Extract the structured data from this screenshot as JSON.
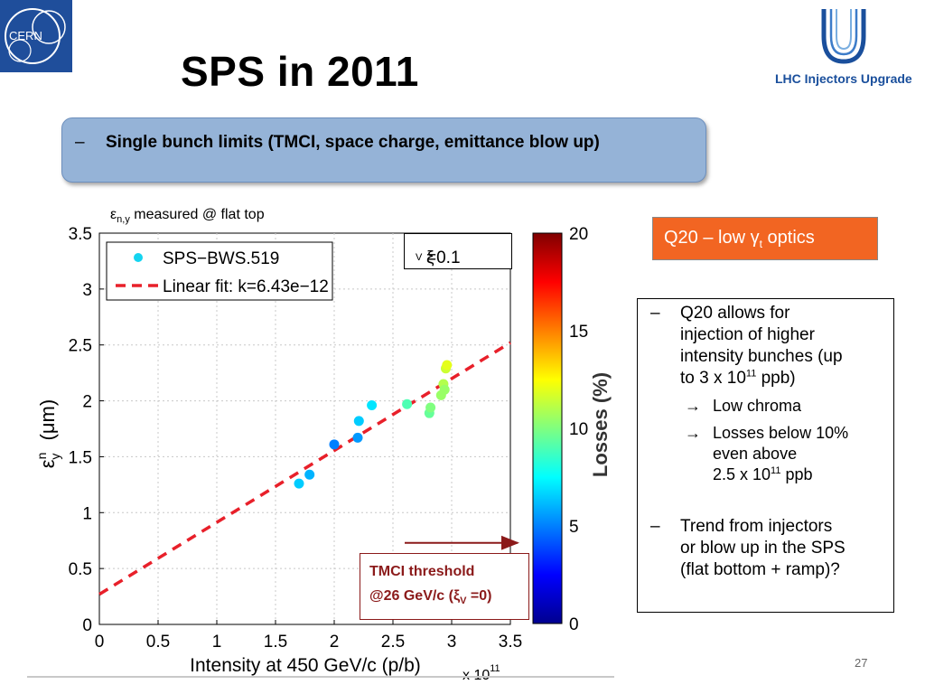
{
  "slide": {
    "title": "SPS in 2011",
    "logo_left_text": "CERN",
    "logo_right_text": "LHC Injectors Upgrade",
    "page_number": "27",
    "bullet_top": {
      "dash": "–",
      "text": "Single bunch limits (TMCI, space charge, emittance blow up)"
    },
    "emittance_label": {
      "symbol": "ε",
      "subscript": "n,y",
      "text": " measured @ flat top"
    },
    "q20_box": {
      "prefix": "Q20 – low ",
      "symbol": "γ",
      "subscript": "t",
      "suffix": " optics"
    },
    "xi_box": {
      "symbol": "ξ",
      "subscript": "V",
      "value": "=0.1"
    },
    "tmci_box": {
      "line1": "TMCI threshold",
      "line2_prefix": "@26 GeV/c (",
      "line2_symbol": "ξ",
      "line2_sub": "V",
      "line2_suffix": " =0)"
    },
    "right_box": {
      "bullet1": {
        "dash": "–",
        "lines": [
          "Q20 allows for",
          "injection of higher",
          "intensity bunches (up"
        ],
        "line4_prefix": "to 3 x 10",
        "line4_sup": "11",
        "line4_suffix": " ppb)"
      },
      "sub1": {
        "arrow": "→",
        "text": "Low chroma"
      },
      "sub2": {
        "arrow": "→",
        "lines": [
          "Losses below 10%",
          "even above"
        ],
        "line3_prefix": "2.5 x 10",
        "line3_sup": "11",
        "line3_suffix": " ppb"
      },
      "bullet2": {
        "dash": "–",
        "lines": [
          "Trend from injectors",
          "or blow up in the SPS",
          "(flat bottom + ramp)?"
        ]
      }
    }
  },
  "colors": {
    "accent_blue_box": "#95b3d7",
    "q20_orange": "#f26522",
    "tmci_red": "#8b1a1a",
    "fit_line": "#e8202a",
    "cern_blue": "#1f4e9b"
  },
  "chart_data": {
    "type": "scatter",
    "xlabel": "Intensity at 450 GeV/c (p/b)",
    "x_multiplier": "x 10",
    "x_multiplier_exp": "11",
    "ylabel": "ε",
    "ylabel_sup": "n",
    "ylabel_sub": "y",
    "ylabel_unit": "(μm)",
    "xlim": [
      0,
      3.5
    ],
    "ylim": [
      0,
      3.5
    ],
    "xticks": [
      "0",
      "0.5",
      "1",
      "1.5",
      "2",
      "2.5",
      "3",
      "3.5"
    ],
    "yticks": [
      "0",
      "0.5",
      "1",
      "1.5",
      "2",
      "2.5",
      "3",
      "3.5"
    ],
    "grid": true,
    "legend_position": "top-left",
    "legend": [
      "SPS−BWS.519",
      "Linear fit: k=6.43e−12"
    ],
    "series": [
      {
        "name": "SPS−BWS.519",
        "x": [
          1.7,
          1.79,
          2.0,
          2.2,
          2.21,
          2.32,
          2.62,
          2.81,
          2.82,
          2.91,
          2.93,
          2.94,
          2.95,
          2.96
        ],
        "y": [
          1.26,
          1.34,
          1.61,
          1.67,
          1.82,
          1.96,
          1.97,
          1.89,
          1.94,
          2.05,
          2.15,
          2.1,
          2.29,
          2.32
        ],
        "losses": [
          6.5,
          6.0,
          5.0,
          5.5,
          6.5,
          7.0,
          9.0,
          9.5,
          10.0,
          10.5,
          11.0,
          10.5,
          11.5,
          12.0
        ]
      }
    ],
    "fit": {
      "name": "Linear fit: k=6.43e−12",
      "x": [
        0,
        3.5
      ],
      "y": [
        0.27,
        2.52
      ]
    },
    "colorbar": {
      "label": "Losses (%)",
      "range": [
        0,
        20
      ],
      "ticks": [
        "0",
        "5",
        "10",
        "15",
        "20"
      ]
    },
    "tmci_arrow_x": [
      2.6,
      3.5
    ],
    "tmci_arrow_y": 0.73
  }
}
